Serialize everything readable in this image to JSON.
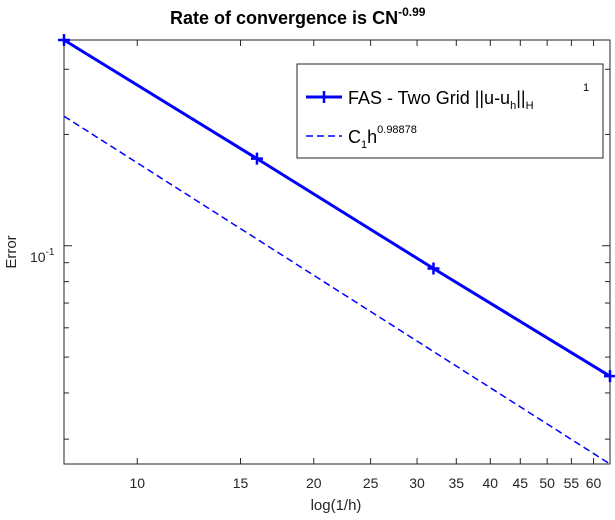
{
  "chart_data": {
    "type": "line",
    "title": {
      "main": "Rate of convergence is CN",
      "exponent": "-0.99"
    },
    "xlabel": "log(1/h)",
    "ylabel": "Error",
    "x_scale": "log",
    "y_scale": "log",
    "xlim": [
      7.5,
      64
    ],
    "ylim": [
      0.0257,
      0.36
    ],
    "x_ticks": [
      10,
      15,
      20,
      25,
      30,
      35,
      40,
      45,
      50,
      55,
      60
    ],
    "x_tick_labels": [
      "10",
      "15",
      "20",
      "25",
      "30",
      "35",
      "40",
      "45",
      "50",
      "55",
      "60"
    ],
    "y_major_tick": {
      "base": "10",
      "exponent": "-1"
    },
    "legend_position": "top-right",
    "grid": false,
    "series": [
      {
        "name": {
          "label": "FAS - Two Grid ||u-u",
          "sub": "h",
          "after": "||",
          "sup2": "1",
          "sub2": "H"
        },
        "style": "solid",
        "marker": "plus",
        "color": "#0000FF",
        "x": [
          7.5,
          16,
          32,
          64
        ],
        "y": [
          0.36,
          0.172,
          0.0868,
          0.0444
        ]
      },
      {
        "name": {
          "label": "C",
          "sub": "1",
          "after": "h",
          "sup": "0.98878"
        },
        "style": "dashed",
        "marker": "none",
        "color": "#0000FF",
        "x": [
          7.5,
          64
        ],
        "y": [
          0.224,
          0.0257
        ]
      }
    ]
  }
}
